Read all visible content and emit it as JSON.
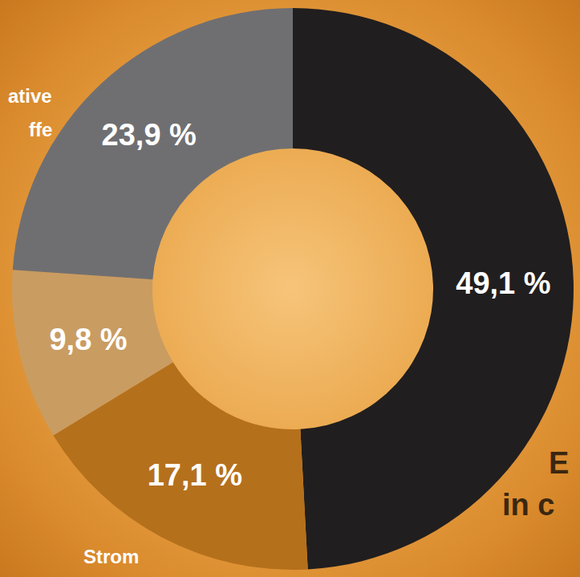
{
  "chart_data": {
    "type": "pie",
    "donut": true,
    "categories": [
      null,
      "Strom",
      null,
      null
    ],
    "values": [
      49.1,
      17.1,
      9.8,
      23.9
    ],
    "value_labels": [
      "49,1 %",
      "17,1 %",
      "9,8 %",
      "23,9 %"
    ],
    "colors": [
      "#211e1f",
      "#b5701c",
      "#c99c62",
      "#6f6f72"
    ],
    "data_labels": true,
    "annotations": [
      "ative",
      "ffe",
      "E",
      "in c"
    ]
  }
}
